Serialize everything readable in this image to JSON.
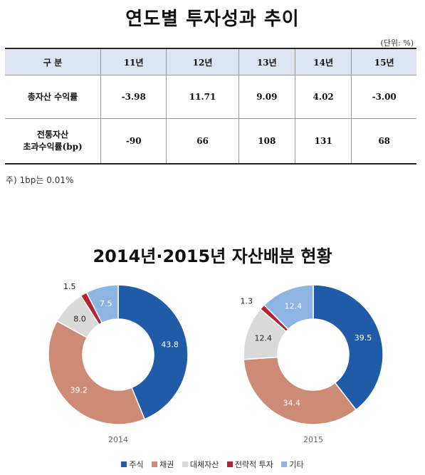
{
  "title": "연도별 투자성과 추이",
  "unit": "(단위: %)",
  "table": {
    "header": [
      "구 분",
      "11년",
      "12년",
      "13년",
      "14년",
      "15년"
    ],
    "rows": [
      {
        "label_lines": [
          "총자산 수익률"
        ],
        "values": [
          "-3.98",
          "11.71",
          "9.09",
          "4.02",
          "-3.00"
        ]
      },
      {
        "label_lines": [
          "전통자산",
          "초과수익률(bp)"
        ],
        "values": [
          "-90",
          "66",
          "108",
          "131",
          "68"
        ]
      }
    ]
  },
  "note": "주) 1bp는 0.01%",
  "chart_title": "2014년·2015년 자산배분 현황",
  "chart_data": [
    {
      "type": "pie",
      "variant": "donut",
      "caption": "2014",
      "categories": [
        "주식",
        "채권",
        "대체자산",
        "전략적 투자",
        "기타"
      ],
      "values": [
        43.8,
        39.2,
        8.0,
        1.5,
        7.5
      ],
      "labels": [
        "43.8",
        "39.2",
        "8.0",
        "1.5",
        "7.5"
      ]
    },
    {
      "type": "pie",
      "variant": "donut",
      "caption": "2015",
      "categories": [
        "주식",
        "채권",
        "대체자산",
        "전략적 투자",
        "기타"
      ],
      "values": [
        39.5,
        34.4,
        12.4,
        1.3,
        12.4
      ],
      "labels": [
        "39.5",
        "34.4",
        "12.4",
        "1.3",
        "12.4"
      ]
    }
  ],
  "legend": [
    {
      "label": "주식",
      "color": "#1f5ba6"
    },
    {
      "label": "채권",
      "color": "#cd8a74"
    },
    {
      "label": "대체자산",
      "color": "#dadada"
    },
    {
      "label": "전략적 투자",
      "color": "#b5252f"
    },
    {
      "label": "기타",
      "color": "#8db4e2"
    }
  ],
  "label_colors": [
    "#ffffff",
    "#ffffff",
    "#222222",
    "#222222",
    "#ffffff"
  ]
}
